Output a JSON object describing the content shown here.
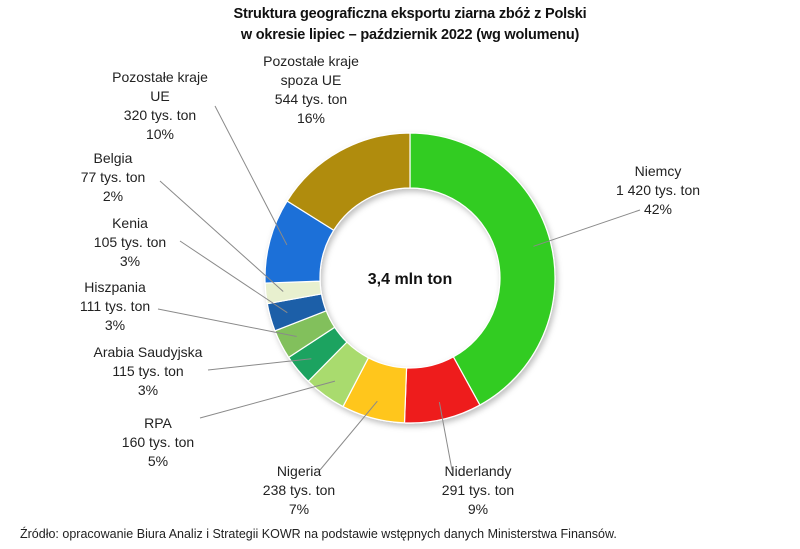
{
  "title_line1": "Struktura geograficzna eksportu ziarna zbóż z Polski",
  "title_line2": "w okresie lipiec – październik 2022 (wg wolumenu)",
  "source": "Źródło: opracowanie Biura Analiz i Strategii KOWR na podstawie wstępnych danych Ministerstwa Finansów.",
  "chart_data": {
    "type": "pie",
    "variant": "donut",
    "title": "Struktura geograficzna eksportu ziarna zbóż z Polski w okresie lipiec – październik 2022 (wg wolumenu)",
    "center_label": "3,4 mln ton",
    "unit": "tys. ton",
    "slices": [
      {
        "name": "Niemcy",
        "value": 1420,
        "value_label": "1 420 tys. ton",
        "percent_label": "42%",
        "color": "#33cc22"
      },
      {
        "name": "Niderlandy",
        "value": 291,
        "value_label": "291 tys. ton",
        "percent_label": "9%",
        "color": "#ee1c1c"
      },
      {
        "name": "Nigeria",
        "value": 238,
        "value_label": "238 tys. ton",
        "percent_label": "7%",
        "color": "#ffc61a"
      },
      {
        "name": "RPA",
        "value": 160,
        "value_label": "160 tys. ton",
        "percent_label": "5%",
        "color": "#a9db6e"
      },
      {
        "name": "Arabia Saudyjska",
        "value": 115,
        "value_label": "115 tys. ton",
        "percent_label": "3%",
        "color": "#1fa360"
      },
      {
        "name": "Hiszpania",
        "value": 111,
        "value_label": "111 tys. ton",
        "percent_label": "3%",
        "color": "#82c05b"
      },
      {
        "name": "Kenia",
        "value": 105,
        "value_label": "105 tys. ton",
        "percent_label": "3%",
        "color": "#1e5fa8"
      },
      {
        "name": "Belgia",
        "value": 77,
        "value_label": "77 tys. ton",
        "percent_label": "2%",
        "color": "#e8f0cf"
      },
      {
        "name": "Pozostałe kraje UE",
        "value": 320,
        "value_label": "320 tys. ton",
        "percent_label": "10%",
        "color": "#1b70d8"
      },
      {
        "name": "Pozostałe kraje spoza UE",
        "value": 544,
        "value_label": "544 tys. ton",
        "percent_label": "16%",
        "color": "#b08c0e"
      }
    ]
  }
}
